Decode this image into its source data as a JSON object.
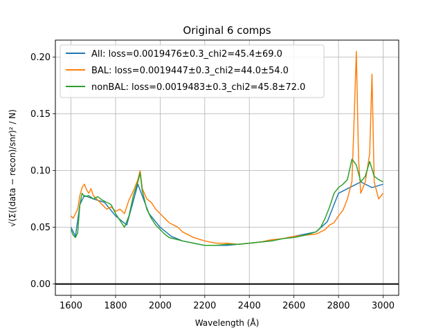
{
  "chart_data": {
    "type": "line",
    "title": "Original 6 comps",
    "xlabel": "Wavelength (Å)",
    "ylabel": "√(Σ((data − recon)/snr)² / N)",
    "xlim": [
      1530,
      3070
    ],
    "ylim": [
      -0.01,
      0.215
    ],
    "xticks": [
      1600,
      1800,
      2000,
      2200,
      2400,
      2600,
      2800,
      3000
    ],
    "yticks": [
      0.0,
      0.05,
      0.1,
      0.15,
      0.2
    ],
    "xtick_labels": [
      "1600",
      "1800",
      "2000",
      "2200",
      "2400",
      "2600",
      "2800",
      "3000"
    ],
    "ytick_labels": [
      "0.00",
      "0.05",
      "0.10",
      "0.15",
      "0.20"
    ],
    "grid": true,
    "legend_position": "top-left",
    "hline": {
      "y": 0.0,
      "color": "#000000"
    },
    "series": [
      {
        "name": "All: loss=0.0019476±0.3_chi2=45.4±69.0",
        "color": "#1f77b4",
        "x": [
          1600,
          1620,
          1640,
          1660,
          1700,
          1750,
          1800,
          1850,
          1900,
          1950,
          2000,
          2050,
          2100,
          2200,
          2300,
          2400,
          2500,
          2600,
          2700,
          2750,
          2800,
          2850,
          2900,
          2950,
          3000
        ],
        "y": [
          0.05,
          0.042,
          0.07,
          0.078,
          0.075,
          0.072,
          0.06,
          0.052,
          0.088,
          0.062,
          0.05,
          0.042,
          0.038,
          0.034,
          0.034,
          0.036,
          0.038,
          0.042,
          0.046,
          0.055,
          0.08,
          0.085,
          0.09,
          0.085,
          0.088
        ]
      },
      {
        "name": "BAL: loss=0.0019447±0.3_chi2=44.0±54.0",
        "color": "#ff7f0e",
        "x": [
          1600,
          1610,
          1620,
          1630,
          1640,
          1650,
          1660,
          1670,
          1680,
          1690,
          1700,
          1720,
          1740,
          1760,
          1780,
          1800,
          1820,
          1840,
          1860,
          1880,
          1900,
          1910,
          1920,
          1940,
          1960,
          1980,
          2000,
          2020,
          2040,
          2060,
          2080,
          2100,
          2150,
          2200,
          2250,
          2300,
          2350,
          2400,
          2450,
          2500,
          2550,
          2600,
          2650,
          2700,
          2720,
          2740,
          2760,
          2780,
          2800,
          2820,
          2840,
          2860,
          2870,
          2880,
          2890,
          2900,
          2920,
          2940,
          2950,
          2960,
          2980,
          3000
        ],
        "y": [
          0.06,
          0.058,
          0.062,
          0.066,
          0.078,
          0.085,
          0.088,
          0.083,
          0.08,
          0.084,
          0.078,
          0.074,
          0.07,
          0.066,
          0.068,
          0.064,
          0.066,
          0.062,
          0.074,
          0.082,
          0.092,
          0.1,
          0.084,
          0.075,
          0.072,
          0.066,
          0.062,
          0.058,
          0.054,
          0.052,
          0.05,
          0.046,
          0.041,
          0.038,
          0.036,
          0.036,
          0.035,
          0.036,
          0.037,
          0.039,
          0.04,
          0.042,
          0.043,
          0.044,
          0.046,
          0.048,
          0.052,
          0.054,
          0.06,
          0.065,
          0.075,
          0.09,
          0.145,
          0.205,
          0.11,
          0.08,
          0.09,
          0.115,
          0.185,
          0.09,
          0.075,
          0.08
        ]
      },
      {
        "name": "nonBAL: loss=0.0019483±0.3_chi2=45.8±72.0",
        "color": "#2ca02c",
        "x": [
          1600,
          1610,
          1620,
          1630,
          1640,
          1650,
          1660,
          1680,
          1700,
          1720,
          1740,
          1760,
          1780,
          1800,
          1820,
          1840,
          1860,
          1880,
          1900,
          1910,
          1920,
          1940,
          1960,
          1980,
          2000,
          2020,
          2040,
          2060,
          2080,
          2100,
          2150,
          2200,
          2250,
          2300,
          2350,
          2400,
          2450,
          2500,
          2550,
          2600,
          2650,
          2700,
          2720,
          2740,
          2760,
          2780,
          2800,
          2820,
          2840,
          2860,
          2880,
          2900,
          2920,
          2940,
          2960,
          2980,
          3000
        ],
        "y": [
          0.048,
          0.043,
          0.041,
          0.045,
          0.07,
          0.08,
          0.077,
          0.078,
          0.075,
          0.077,
          0.074,
          0.072,
          0.07,
          0.062,
          0.056,
          0.05,
          0.06,
          0.078,
          0.09,
          0.098,
          0.082,
          0.066,
          0.058,
          0.052,
          0.048,
          0.044,
          0.041,
          0.04,
          0.039,
          0.038,
          0.036,
          0.034,
          0.034,
          0.035,
          0.035,
          0.036,
          0.037,
          0.038,
          0.04,
          0.041,
          0.043,
          0.046,
          0.05,
          0.058,
          0.068,
          0.08,
          0.085,
          0.088,
          0.092,
          0.11,
          0.105,
          0.09,
          0.095,
          0.108,
          0.095,
          0.092,
          0.09
        ]
      }
    ]
  }
}
